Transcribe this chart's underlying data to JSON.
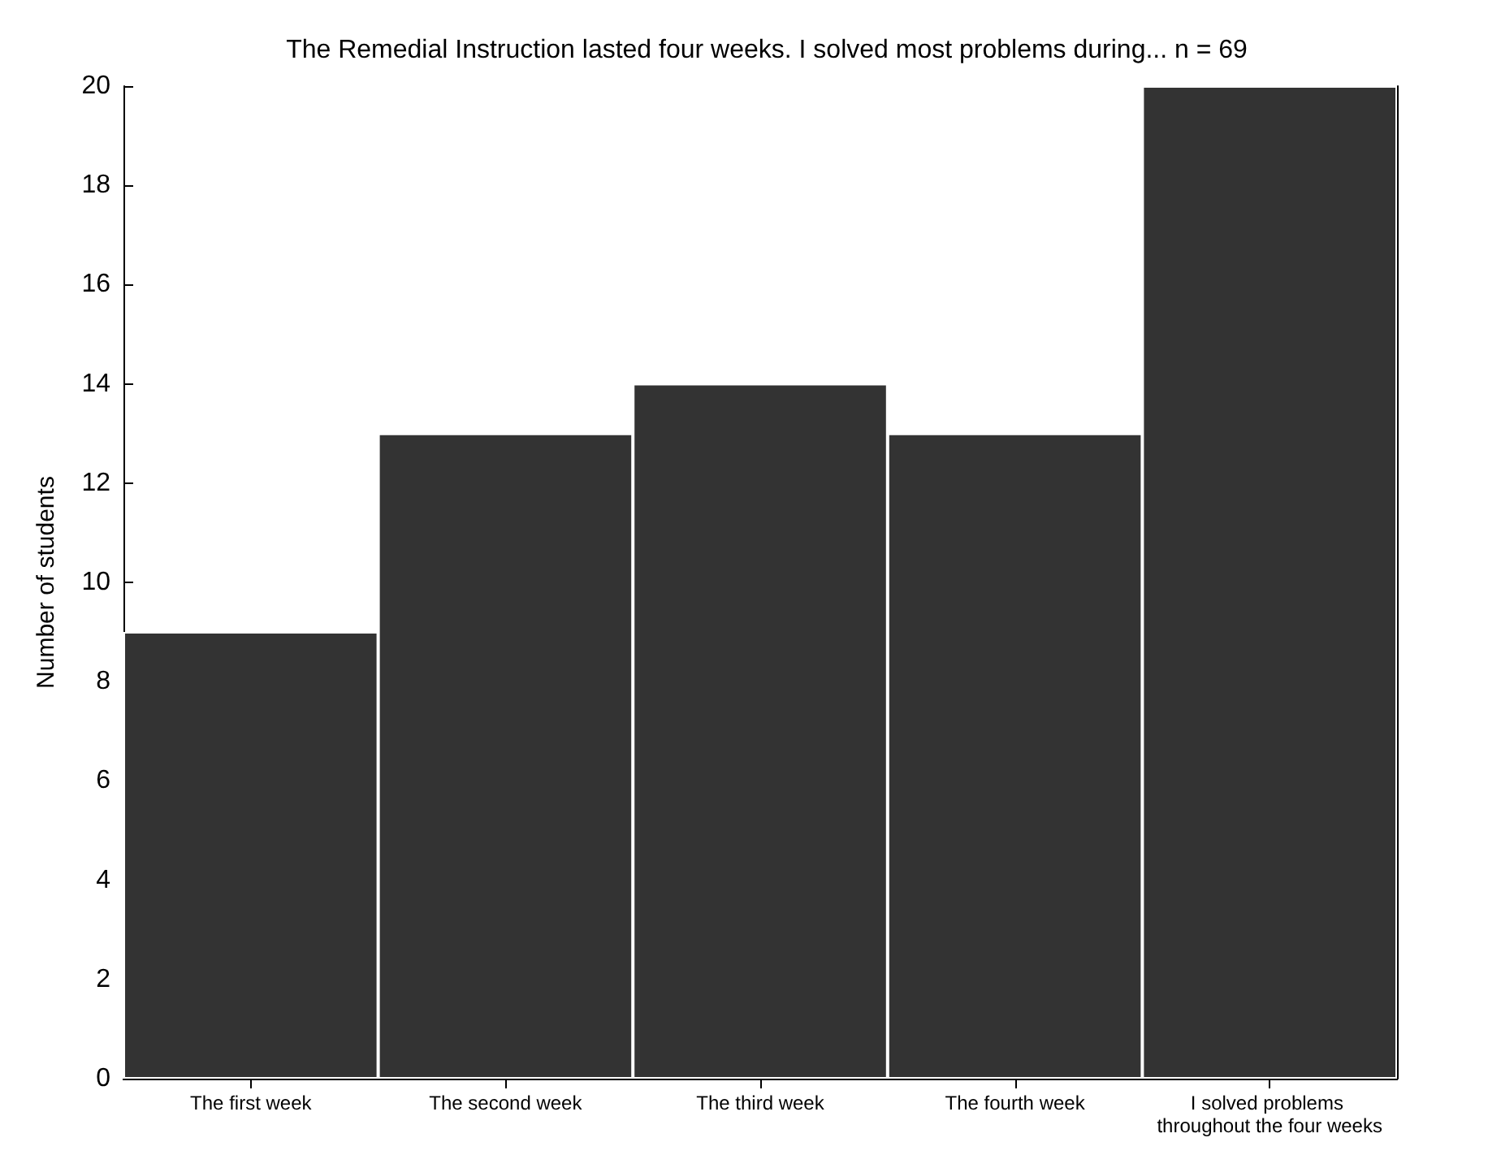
{
  "chart_data": {
    "type": "bar",
    "title": "The Remedial Instruction lasted four weeks. I solved most problems during... n = 69",
    "ylabel": "Number of students",
    "categories": [
      "The first week",
      "The second week",
      "The third week",
      "The fourth week",
      "I solved problems throughout the four weeks"
    ],
    "values": [
      9,
      13,
      14,
      13,
      20
    ],
    "color": "#333333",
    "ylim": [
      0,
      20
    ],
    "yticks": [
      0,
      2,
      4,
      6,
      8,
      10,
      12,
      14,
      16,
      18,
      20
    ],
    "grid": false
  }
}
